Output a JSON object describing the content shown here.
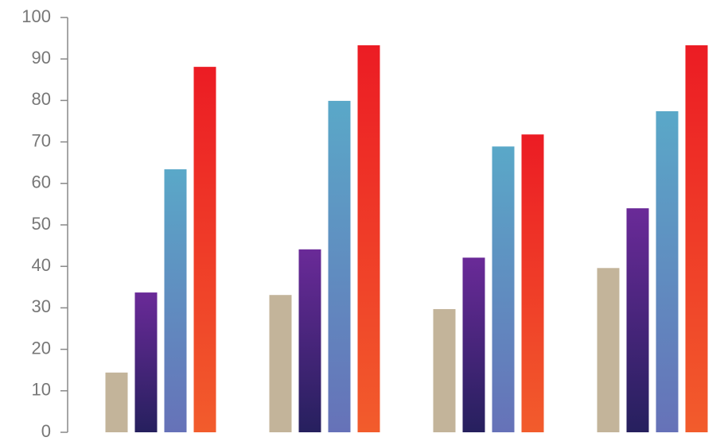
{
  "chart_data": {
    "type": "bar",
    "categories": [
      null,
      null,
      null,
      null
    ],
    "series": [
      {
        "color": [
          "#c3b49a",
          "#c3b49a"
        ],
        "values": [
          14.4,
          33.1,
          29.7,
          39.6
        ]
      },
      {
        "color": [
          "#26205e",
          "#6a2a98"
        ],
        "values": [
          33.7,
          44.1,
          42.1,
          54
        ]
      },
      {
        "color": [
          "#6672b8",
          "#5aa8c8"
        ],
        "values": [
          63.4,
          79.9,
          68.9,
          77.4
        ]
      },
      {
        "color": [
          "#f25c2c",
          "#ec1c24"
        ],
        "values": [
          88.1,
          93.3,
          71.8,
          93.3
        ]
      }
    ],
    "ylim": [
      0,
      100
    ],
    "yticks": [
      0,
      10,
      20,
      30,
      40,
      50,
      60,
      70,
      80,
      90,
      100
    ]
  }
}
